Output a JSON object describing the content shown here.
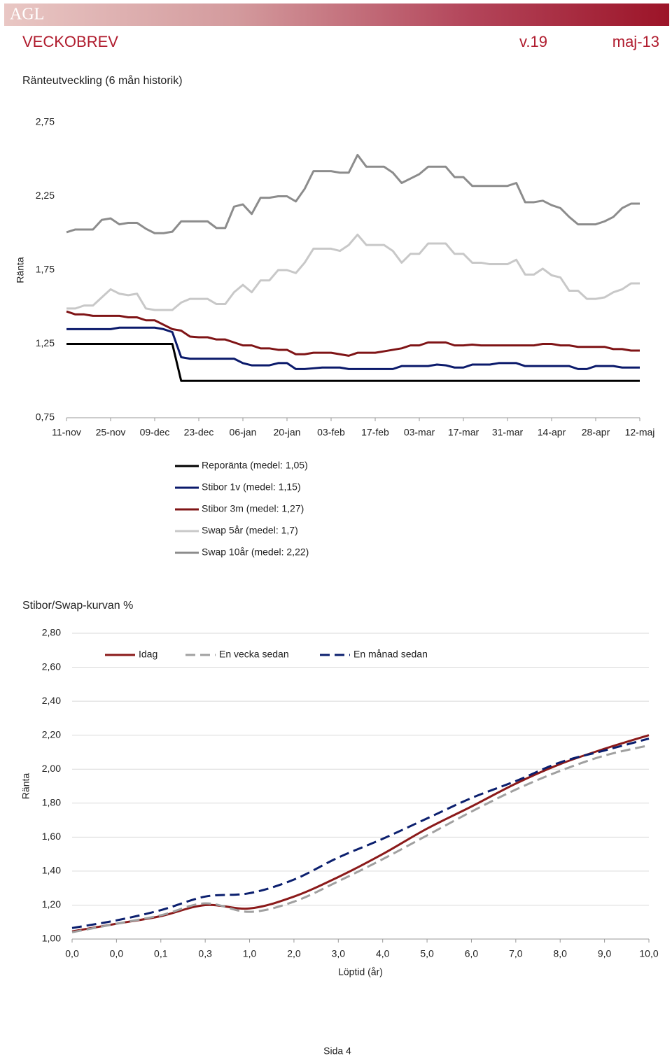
{
  "header": {
    "logo": "AGL",
    "title": "VECKOBREV",
    "week": "v.19",
    "date": "maj-13"
  },
  "footer": "Sida 4",
  "chart_data": [
    {
      "type": "line",
      "title": "Ränteutveckling (6 mån historik)",
      "ylabel": "Ränta",
      "categories": [
        "11-nov",
        null,
        null,
        null,
        null,
        "25-nov",
        null,
        null,
        null,
        null,
        "09-dec",
        null,
        null,
        null,
        null,
        "23-dec",
        null,
        null,
        null,
        null,
        "06-jan",
        null,
        null,
        null,
        null,
        "20-jan",
        null,
        null,
        null,
        null,
        "03-feb",
        null,
        null,
        null,
        null,
        "17-feb",
        null,
        null,
        null,
        null,
        "03-mar",
        null,
        null,
        null,
        null,
        "17-mar",
        null,
        null,
        null,
        null,
        "31-mar",
        null,
        null,
        null,
        null,
        "14-apr",
        null,
        null,
        null,
        null,
        "28-apr",
        null,
        null,
        null,
        null,
        "12-maj"
      ],
      "ylim": [
        0.75,
        2.75
      ],
      "yticks": [
        {
          "value": 0.75,
          "label": "0,75"
        },
        {
          "value": 1.25,
          "label": "1,25"
        },
        {
          "value": 1.75,
          "label": "1,75"
        },
        {
          "value": 2.25,
          "label": "2,25"
        },
        {
          "value": 2.75,
          "label": "2,75"
        }
      ],
      "grid": false,
      "legend": "bottom",
      "series": [
        {
          "name": "Reporänta (medel: 1,05)",
          "color": "#000000",
          "values": [
            1.25,
            1.25,
            1.25,
            1.25,
            1.25,
            1.25,
            1.25,
            1.25,
            1.25,
            1.25,
            1.25,
            1.25,
            1.25,
            1.0,
            1.0,
            1.0,
            1.0,
            1.0,
            1.0,
            1.0,
            1.0,
            1.0,
            1.0,
            1.0,
            1.0,
            1.0,
            1.0,
            1.0,
            1.0,
            1.0,
            1.0,
            1.0,
            1.0,
            1.0,
            1.0,
            1.0,
            1.0,
            1.0,
            1.0,
            1.0,
            1.0,
            1.0,
            1.0,
            1.0,
            1.0,
            1.0,
            1.0,
            1.0,
            1.0,
            1.0,
            1.0,
            1.0,
            1.0,
            1.0,
            1.0,
            1.0,
            1.0,
            1.0,
            1.0,
            1.0,
            1.0,
            1.0,
            1.0,
            1.0,
            1.0,
            1.0
          ]
        },
        {
          "name": "Stibor 1v (medel: 1,15)",
          "color": "#0b1a6b",
          "values": [
            1.35,
            1.35,
            1.35,
            1.35,
            1.35,
            1.35,
            1.36,
            1.36,
            1.36,
            1.36,
            1.36,
            1.35,
            1.33,
            1.16,
            1.15,
            1.15,
            1.15,
            1.15,
            1.15,
            1.15,
            1.12,
            1.105,
            1.105,
            1.105,
            1.12,
            1.12,
            1.08,
            1.08,
            1.085,
            1.09,
            1.09,
            1.09,
            1.08,
            1.08,
            1.08,
            1.08,
            1.08,
            1.08,
            1.1,
            1.1,
            1.1,
            1.1,
            1.11,
            1.105,
            1.09,
            1.09,
            1.11,
            1.11,
            1.11,
            1.12,
            1.12,
            1.12,
            1.1,
            1.1,
            1.1,
            1.1,
            1.1,
            1.1,
            1.08,
            1.08,
            1.1,
            1.1,
            1.1,
            1.09,
            1.09,
            1.09
          ]
        },
        {
          "name": "Stibor 3m (medel: 1,27)",
          "color": "#7f1416",
          "values": [
            1.47,
            1.45,
            1.45,
            1.44,
            1.44,
            1.44,
            1.44,
            1.43,
            1.43,
            1.41,
            1.41,
            1.38,
            1.35,
            1.34,
            1.3,
            1.295,
            1.295,
            1.28,
            1.28,
            1.26,
            1.24,
            1.24,
            1.22,
            1.22,
            1.21,
            1.21,
            1.18,
            1.18,
            1.19,
            1.19,
            1.19,
            1.18,
            1.17,
            1.19,
            1.19,
            1.19,
            1.2,
            1.21,
            1.22,
            1.24,
            1.24,
            1.26,
            1.26,
            1.26,
            1.24,
            1.24,
            1.245,
            1.24,
            1.24,
            1.24,
            1.24,
            1.24,
            1.24,
            1.24,
            1.25,
            1.25,
            1.24,
            1.24,
            1.23,
            1.23,
            1.23,
            1.23,
            1.215,
            1.215,
            1.205,
            1.205
          ]
        },
        {
          "name": "Swap 5år (medel: 1,7)",
          "color": "#c8c8c8",
          "values": [
            1.49,
            1.49,
            1.51,
            1.51,
            1.565,
            1.62,
            1.59,
            1.58,
            1.59,
            1.49,
            1.48,
            1.48,
            1.48,
            1.53,
            1.555,
            1.555,
            1.555,
            1.52,
            1.52,
            1.6,
            1.65,
            1.6,
            1.68,
            1.68,
            1.75,
            1.75,
            1.73,
            1.8,
            1.895,
            1.895,
            1.895,
            1.88,
            1.92,
            1.99,
            1.92,
            1.92,
            1.92,
            1.88,
            1.8,
            1.86,
            1.86,
            1.93,
            1.93,
            1.93,
            1.86,
            1.86,
            1.8,
            1.8,
            1.79,
            1.79,
            1.79,
            1.82,
            1.72,
            1.72,
            1.76,
            1.715,
            1.7,
            1.61,
            1.61,
            1.555,
            1.555,
            1.565,
            1.6,
            1.62,
            1.66,
            1.66
          ]
        },
        {
          "name": "Swap 10år (medel: 2,22)",
          "color": "#8c8c8c",
          "values": [
            2.006,
            2.025,
            2.025,
            2.025,
            2.09,
            2.1,
            2.06,
            2.07,
            2.07,
            2.03,
            2.0,
            2.0,
            2.01,
            2.08,
            2.08,
            2.08,
            2.08,
            2.035,
            2.035,
            2.18,
            2.195,
            2.13,
            2.24,
            2.24,
            2.25,
            2.25,
            2.215,
            2.3,
            2.42,
            2.42,
            2.42,
            2.41,
            2.41,
            2.53,
            2.45,
            2.45,
            2.45,
            2.41,
            2.34,
            2.37,
            2.4,
            2.45,
            2.45,
            2.45,
            2.38,
            2.38,
            2.32,
            2.32,
            2.32,
            2.32,
            2.32,
            2.34,
            2.21,
            2.21,
            2.22,
            2.19,
            2.17,
            2.11,
            2.06,
            2.06,
            2.06,
            2.08,
            2.11,
            2.17,
            2.2,
            2.2
          ]
        }
      ]
    },
    {
      "type": "line",
      "title": "Stibor/Swap-kurvan %",
      "ylabel": "Ränta",
      "xlabel": "Löptid (år)",
      "smooth": true,
      "categories": [
        "0,0",
        "0,0",
        "0,1",
        "0,3",
        "1,0",
        "2,0",
        "3,0",
        "4,0",
        "5,0",
        "6,0",
        "7,0",
        "8,0",
        "9,0",
        "10,0"
      ],
      "ylim": [
        1.0,
        2.8
      ],
      "yticks": [
        {
          "value": 1.0,
          "label": "1,00"
        },
        {
          "value": 1.2,
          "label": "1,20"
        },
        {
          "value": 1.4,
          "label": "1,40"
        },
        {
          "value": 1.6,
          "label": "1,60"
        },
        {
          "value": 1.8,
          "label": "1,80"
        },
        {
          "value": 2.0,
          "label": "2,00"
        },
        {
          "value": 2.2,
          "label": "2,20"
        },
        {
          "value": 2.4,
          "label": "2,40"
        },
        {
          "value": 2.6,
          "label": "2,60"
        },
        {
          "value": 2.8,
          "label": "2,80"
        }
      ],
      "grid": true,
      "legend": "top",
      "series": [
        {
          "name": "Idag",
          "color": "#8b1a1a",
          "line_style": "solid",
          "values": [
            1.045,
            1.09,
            1.135,
            1.2,
            1.18,
            1.25,
            1.365,
            1.5,
            1.65,
            1.78,
            1.915,
            2.03,
            2.12,
            2.2
          ]
        },
        {
          "name": "En vecka sedan",
          "color": "#a0a0a0",
          "line_style": "dashed",
          "values": [
            1.04,
            1.09,
            1.14,
            1.21,
            1.16,
            1.22,
            1.34,
            1.47,
            1.61,
            1.75,
            1.88,
            1.99,
            2.08,
            2.14
          ]
        },
        {
          "name": "En månad sedan",
          "color": "#0b1f6e",
          "line_style": "dashed",
          "values": [
            1.065,
            1.11,
            1.17,
            1.25,
            1.27,
            1.35,
            1.48,
            1.59,
            1.71,
            1.83,
            1.93,
            2.04,
            2.11,
            2.18
          ]
        }
      ]
    }
  ]
}
